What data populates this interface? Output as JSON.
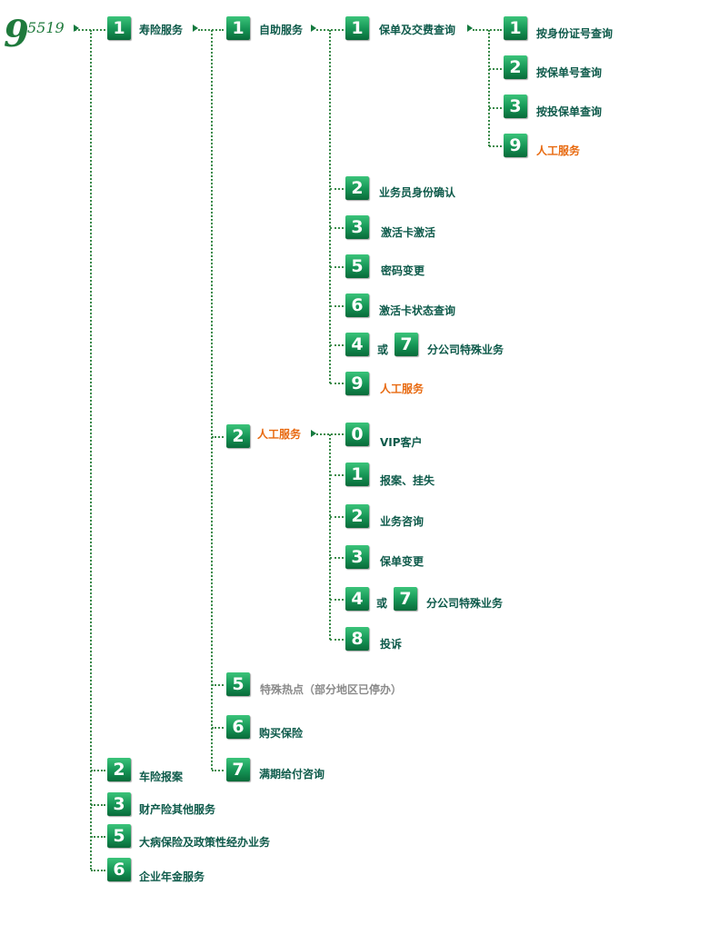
{
  "logo": {
    "main": "9",
    "sub": "5519"
  },
  "or_text": "或",
  "level1": {
    "life": {
      "num": "1",
      "label": "寿险服务"
    },
    "car": {
      "num": "2",
      "label": "车险报案"
    },
    "property": {
      "num": "3",
      "label": "财产险其他服务"
    },
    "illness": {
      "num": "5",
      "label": "大病保险及政策性经办业务"
    },
    "annuity": {
      "num": "6",
      "label": "企业年金服务"
    }
  },
  "level2": {
    "self_service": {
      "num": "1",
      "label": "自助服务"
    },
    "manual": {
      "num": "2",
      "label": "人工服务"
    },
    "hotspot": {
      "num": "5",
      "label": "特殊热点（部分地区已停办）"
    },
    "buy": {
      "num": "6",
      "label": "购买保险"
    },
    "maturity": {
      "num": "7",
      "label": "满期给付咨询"
    }
  },
  "self_service": {
    "policy_query": {
      "num": "1",
      "label": "保单及交费查询"
    },
    "agent_id": {
      "num": "2",
      "label": "业务员身份确认"
    },
    "card_activate": {
      "num": "3",
      "label": "激活卡激活"
    },
    "password": {
      "num": "5",
      "label": "密码变更"
    },
    "card_status": {
      "num": "6",
      "label": "激活卡状态查询"
    },
    "branch": {
      "num": "4",
      "num_alt": "7",
      "label": "分公司特殊业务"
    },
    "manual": {
      "num": "9",
      "label": "人工服务"
    }
  },
  "policy_query": {
    "by_id": {
      "num": "1",
      "label": "按身份证号查询"
    },
    "by_policy": {
      "num": "2",
      "label": "按保单号查询"
    },
    "by_applicant": {
      "num": "3",
      "label": "按投保单查询"
    },
    "manual": {
      "num": "9",
      "label": "人工服务"
    }
  },
  "manual_service": {
    "vip": {
      "num": "0",
      "label": "VIP客户"
    },
    "report": {
      "num": "1",
      "label": "报案、挂失"
    },
    "consult": {
      "num": "2",
      "label": "业务咨询"
    },
    "change": {
      "num": "3",
      "label": "保单变更"
    },
    "branch": {
      "num": "4",
      "num_alt": "7",
      "label": "分公司特殊业务"
    },
    "complaint": {
      "num": "8",
      "label": "投诉"
    }
  },
  "colors": {
    "badge": "#159455",
    "text": "#0d5a4a",
    "highlight": "#e86a10",
    "muted": "#8a8a8a",
    "connector": "#3a8a4a"
  }
}
